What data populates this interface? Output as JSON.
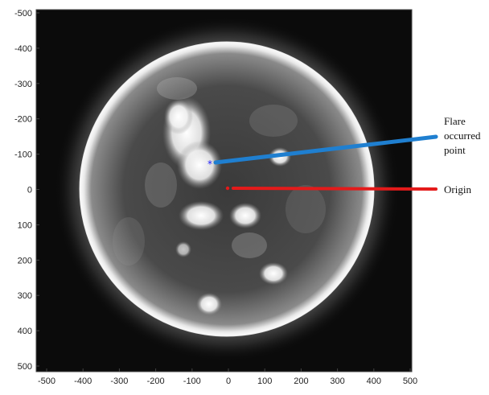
{
  "figure": {
    "x_ticks": [
      "-500",
      "-400",
      "-300",
      "-200",
      "-100",
      "0",
      "100",
      "200",
      "300",
      "400",
      "500"
    ],
    "y_ticks": [
      "-500",
      "-400",
      "-300",
      "-200",
      "-100",
      "0",
      "100",
      "200",
      "300",
      "400",
      "500"
    ],
    "annotations": {
      "flare_line1": "Flare",
      "flare_line2": "occurred",
      "flare_line3": "point",
      "origin": "Origin"
    },
    "colors": {
      "flare_arrow": "#1f7fd0",
      "origin_arrow": "#e41a1a",
      "flare_marker": "#1a1aff",
      "origin_marker": "#e41a1a",
      "background": "#0a0a0a"
    }
  }
}
